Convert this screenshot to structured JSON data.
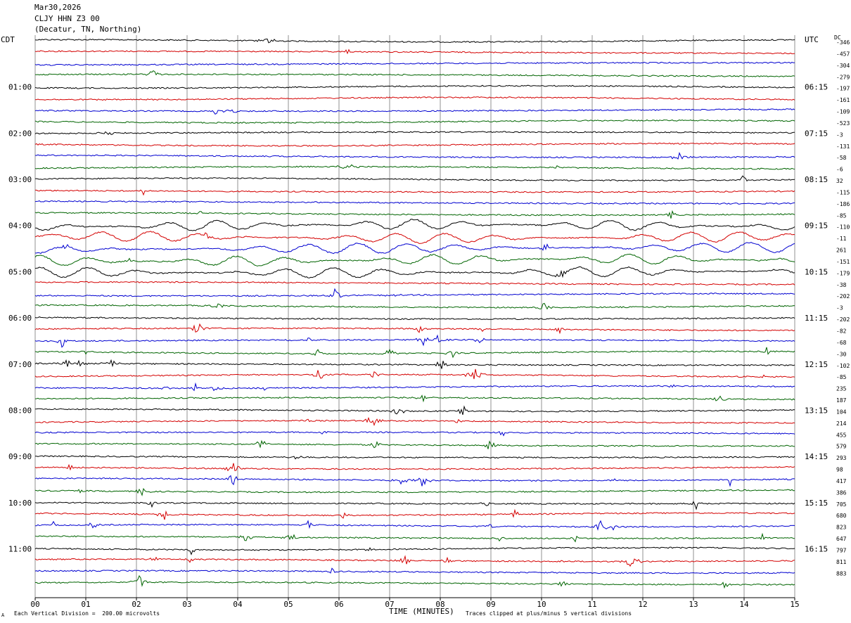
{
  "header": {
    "date": "Mar30,2026",
    "station": "CLJY HHN Z3 00",
    "location": "(Decatur, TN, Northing)"
  },
  "left_timezone": "CDT",
  "right_timezone": "UTC",
  "dc_label": "DC",
  "footer": {
    "scale_note": "Each Vertical Division =  200.00 microvolts",
    "xlabel": "TIME (MINUTES)",
    "clip_note": "Traces clipped at plus/minus 5 vertical divisions",
    "mark": "A"
  },
  "chart_data": {
    "type": "line",
    "title": "CLJY HHN Z3 00",
    "xlabel": "TIME (MINUTES)",
    "ylabel": "",
    "xlim": [
      0,
      15
    ],
    "x_ticks": [
      "00",
      "01",
      "02",
      "03",
      "04",
      "05",
      "06",
      "07",
      "08",
      "09",
      "10",
      "11",
      "12",
      "13",
      "14",
      "15"
    ],
    "grid": true,
    "trace_colors": [
      "#000000",
      "#d40000",
      "#0000d0",
      "#006400"
    ],
    "trace_count": 48,
    "left_hour_labels": [
      "01:00",
      "02:00",
      "03:00",
      "04:00",
      "05:00",
      "06:00",
      "07:00",
      "08:00",
      "09:00",
      "10:00",
      "11:00"
    ],
    "right_hour_labels": [
      "06:15",
      "07:15",
      "08:15",
      "09:15",
      "10:15",
      "11:15",
      "12:15",
      "13:15",
      "14:15",
      "15:15",
      "16:15"
    ],
    "dc_offsets": [
      -346,
      -457,
      -304,
      -279,
      -197,
      -161,
      -109,
      -523,
      -3,
      -131,
      -58,
      -6,
      32,
      -115,
      -186,
      -85,
      -110,
      -11,
      261,
      -151,
      -179,
      -38,
      -202,
      -3,
      -202,
      -82,
      -68,
      -30,
      -102,
      -85,
      235,
      187,
      104,
      214,
      455,
      579,
      293,
      98,
      417,
      386,
      705,
      680,
      823,
      647,
      797,
      811,
      883
    ]
  }
}
